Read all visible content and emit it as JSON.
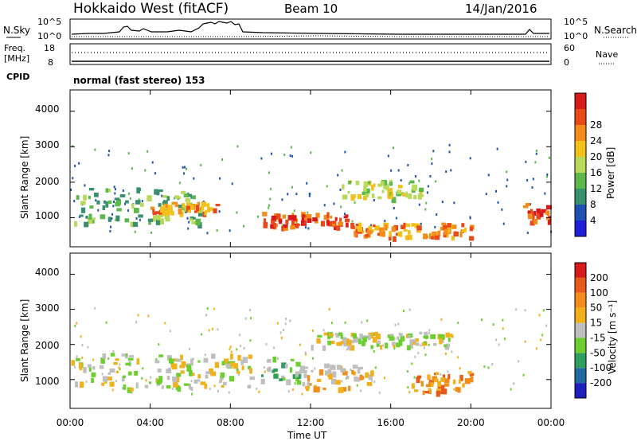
{
  "header": {
    "title": "Hokkaido West (fitACF)",
    "beam": "Beam 10",
    "date": "14/Jan/2016"
  },
  "noise_panel": {
    "left_label": "N.Sky",
    "right_label": "N.Search",
    "left_ticks": [
      "10^5",
      "10^0"
    ],
    "right_ticks": [
      "10^5",
      "10^0"
    ]
  },
  "freq_panel": {
    "left_label_line1": "Freq.",
    "left_label_line2": "[MHz]",
    "left_ticks": [
      "18",
      "8"
    ],
    "right_ticks": [
      "60",
      "0"
    ],
    "right_label": "Nave"
  },
  "cpid_panel": {
    "label": "CPID",
    "text": "normal (fast stereo) 153"
  },
  "power_panel": {
    "ylabel": "Slant Range [km]",
    "yticks": [
      "1000",
      "2000",
      "3000",
      "4000"
    ],
    "colorbar_label": "Power [dB]",
    "colorbar_ticks": [
      "4",
      "8",
      "12",
      "16",
      "20",
      "24",
      "28"
    ],
    "colors": [
      "#1f1fd9",
      "#1f52b0",
      "#3a8f6e",
      "#5cb84a",
      "#b8d95a",
      "#f2c21a",
      "#f28c1a",
      "#e84a1a",
      "#d91a1a"
    ]
  },
  "velocity_panel": {
    "ylabel": "Slant Range [km]",
    "yticks": [
      "1000",
      "2000",
      "3000",
      "4000"
    ],
    "colorbar_label": "Velocity [m s⁻¹]",
    "colorbar_ticks": [
      "200",
      "100",
      "50",
      "15",
      "-15",
      "-50",
      "-100",
      "-200"
    ],
    "colors": [
      "#1f1fbf",
      "#1f6a9f",
      "#2f9f5f",
      "#6ccf2f",
      "#bfbfbf",
      "#f2b01a",
      "#f28c1a",
      "#e85a1a",
      "#d91a1a"
    ]
  },
  "x_axis": {
    "label": "Time UT",
    "ticks": [
      "00:00",
      "04:00",
      "08:00",
      "12:00",
      "16:00",
      "20:00",
      "00:00"
    ]
  },
  "chart_data": {
    "type": "heatmap",
    "title": "Hokkaido West (fitACF)",
    "xlabel": "Time UT",
    "ylabel": "Slant Range [km]",
    "xlim": [
      "00:00",
      "24:00"
    ],
    "ylim": [
      180,
      4600
    ],
    "power_regions": [
      {
        "t0": 0.0,
        "t1": 6.5,
        "r0": 800,
        "r1": 1800,
        "level": 3
      },
      {
        "t0": 4.0,
        "t1": 7.3,
        "r0": 1100,
        "r1": 1400,
        "level": 6
      },
      {
        "t0": 9.5,
        "t1": 14.0,
        "r0": 700,
        "r1": 1100,
        "level": 7
      },
      {
        "t0": 14.0,
        "t1": 20.0,
        "r0": 400,
        "r1": 800,
        "level": 6
      },
      {
        "t0": 13.5,
        "t1": 17.5,
        "r0": 1500,
        "r1": 2000,
        "level": 4
      },
      {
        "t0": 22.5,
        "t1": 24.0,
        "r0": 800,
        "r1": 1400,
        "level": 7
      }
    ],
    "velocity_regions": [
      {
        "t0": 0.0,
        "t1": 9.0,
        "r0": 700,
        "r1": 1700,
        "level": 4
      },
      {
        "t0": 9.5,
        "t1": 11.5,
        "r0": 900,
        "r1": 1600,
        "level": 3
      },
      {
        "t0": 11.5,
        "t1": 15.0,
        "r0": 700,
        "r1": 1400,
        "level": 5
      },
      {
        "t0": 17.0,
        "t1": 20.0,
        "r0": 600,
        "r1": 1200,
        "level": 6
      },
      {
        "t0": 12.0,
        "t1": 19.0,
        "r0": 1900,
        "r1": 2300,
        "level": 4
      }
    ]
  }
}
